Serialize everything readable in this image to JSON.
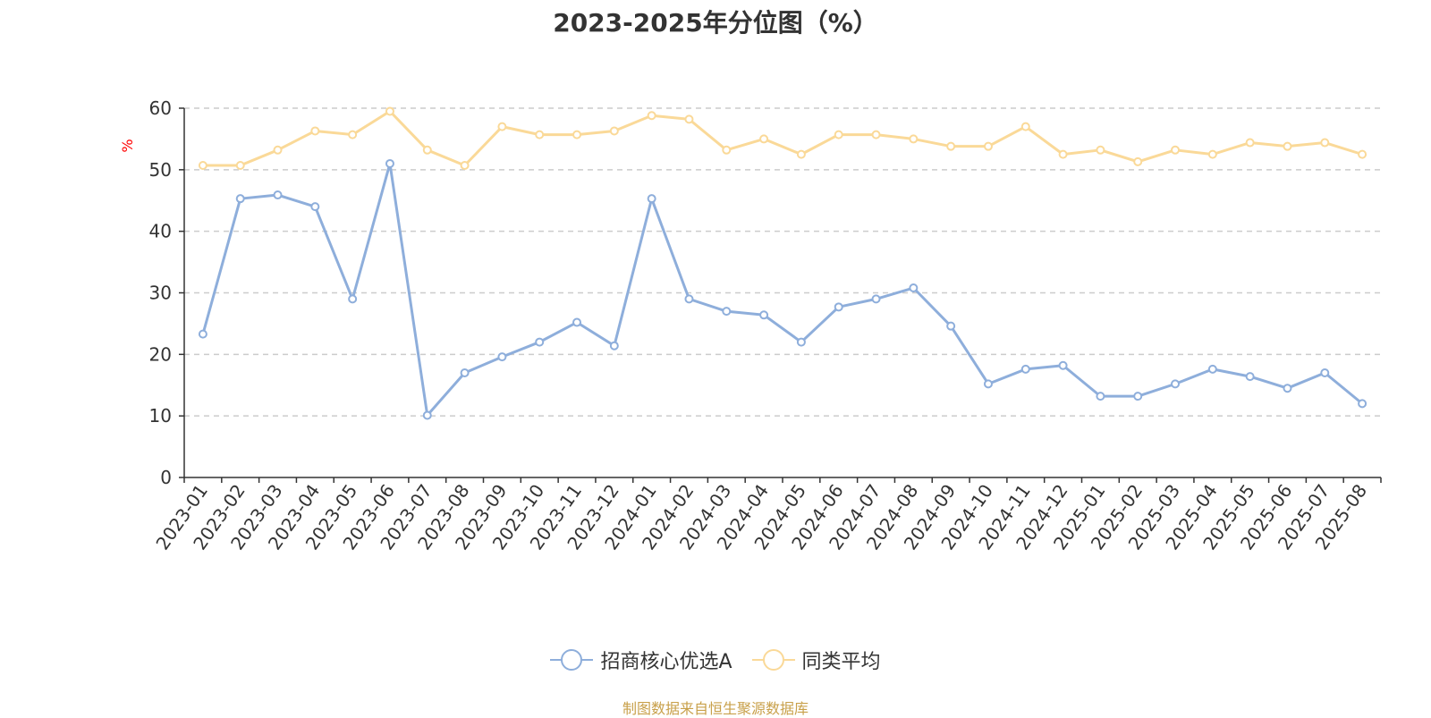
{
  "chart_data": {
    "type": "line",
    "title": "2023-2025年分位图（%）",
    "ylabel": "%",
    "ylim": [
      0,
      60
    ],
    "yticks": [
      0,
      10,
      20,
      30,
      40,
      50,
      60
    ],
    "grid": true,
    "legend_position": "bottom-center",
    "categories": [
      "2023-01",
      "2023-02",
      "2023-03",
      "2023-04",
      "2023-05",
      "2023-06",
      "2023-07",
      "2023-08",
      "2023-09",
      "2023-10",
      "2023-11",
      "2023-12",
      "2024-01",
      "2024-02",
      "2024-03",
      "2024-04",
      "2024-05",
      "2024-06",
      "2024-07",
      "2024-08",
      "2024-09",
      "2024-10",
      "2024-11",
      "2024-12",
      "2025-01",
      "2025-02",
      "2025-03",
      "2025-04",
      "2025-05",
      "2025-06",
      "2025-07",
      "2025-08"
    ],
    "series": [
      {
        "name": "招商核心优选A",
        "color": "#8eaedb",
        "values": [
          23.3,
          45.3,
          45.9,
          44.0,
          29.0,
          51.0,
          10.1,
          17.0,
          19.6,
          22.0,
          25.2,
          21.4,
          45.3,
          29.0,
          27.0,
          26.4,
          22.0,
          27.7,
          29.0,
          30.8,
          24.6,
          15.2,
          17.6,
          18.2,
          13.2,
          13.2,
          15.2,
          17.6,
          16.4,
          14.5,
          17.0,
          12.0
        ]
      },
      {
        "name": "同类平均",
        "color": "#fad998",
        "values": [
          50.7,
          50.7,
          53.2,
          56.3,
          55.7,
          59.5,
          53.2,
          50.7,
          57.0,
          55.7,
          55.7,
          56.3,
          58.8,
          58.2,
          53.2,
          55.0,
          52.5,
          55.7,
          55.7,
          55.0,
          53.8,
          53.8,
          57.0,
          52.5,
          53.2,
          51.3,
          53.2,
          52.5,
          54.4,
          53.8,
          54.4,
          52.5
        ]
      }
    ]
  },
  "source_note": "制图数据来自恒生聚源数据库",
  "colors": {
    "axis": "#333333",
    "grid": "#cccccc",
    "source": "#c8a04a",
    "unit": "#ff0000"
  }
}
